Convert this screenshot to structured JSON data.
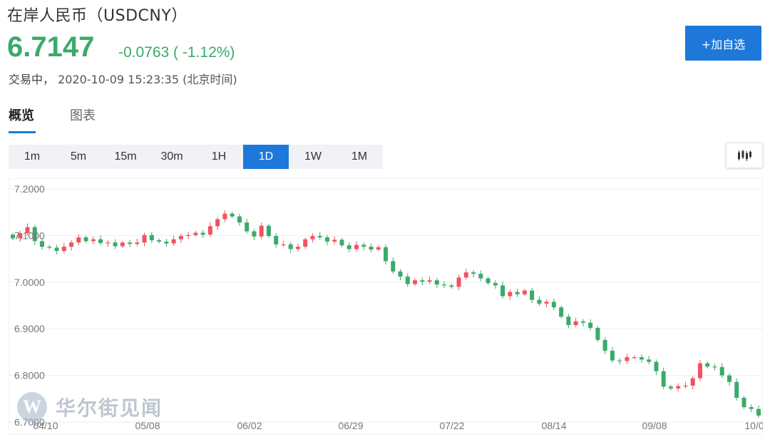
{
  "header": {
    "title": "在岸人民币（USDCNY）",
    "price": "6.7147",
    "change": "-0.0763 ( -1.12%)",
    "status_label": "交易中，",
    "timestamp": "2020-10-09 15:23:35 (北京时间)",
    "add_button": "+加自选"
  },
  "tabs": [
    {
      "label": "概览",
      "active": true
    },
    {
      "label": "图表",
      "active": false
    }
  ],
  "intervals": [
    {
      "label": "1m",
      "active": false
    },
    {
      "label": "5m",
      "active": false
    },
    {
      "label": "15m",
      "active": false
    },
    {
      "label": "30m",
      "active": false
    },
    {
      "label": "1H",
      "active": false
    },
    {
      "label": "1D",
      "active": true
    },
    {
      "label": "1W",
      "active": false
    },
    {
      "label": "1M",
      "active": false
    }
  ],
  "chart_type_icon": "candlestick-icon",
  "colors": {
    "up": "#f0535f",
    "down": "#3aaa6b",
    "accent": "#1e78d9"
  },
  "watermark": {
    "text": "华尔街见闻",
    "logo_letter": "W"
  },
  "chart_data": {
    "type": "candlestick",
    "y_ticks": [
      "7.2000",
      "7.1000",
      "7.0000",
      "6.9000",
      "6.8000",
      "6.7000"
    ],
    "x_ticks": [
      "04/10",
      "05/08",
      "06/02",
      "06/29",
      "07/22",
      "08/14",
      "09/08",
      "10/0"
    ],
    "ylim": [
      6.7,
      7.2
    ],
    "grid": true,
    "closes": [
      7.094,
      7.105,
      7.118,
      7.088,
      7.076,
      7.074,
      7.067,
      7.076,
      7.085,
      7.096,
      7.088,
      7.092,
      7.084,
      7.085,
      7.077,
      7.085,
      7.082,
      7.085,
      7.101,
      7.09,
      7.087,
      7.083,
      7.092,
      7.099,
      7.101,
      7.106,
      7.102,
      7.12,
      7.135,
      7.147,
      7.141,
      7.128,
      7.109,
      7.098,
      7.121,
      7.099,
      7.081,
      7.081,
      7.071,
      7.076,
      7.092,
      7.099,
      7.096,
      7.087,
      7.091,
      7.079,
      7.071,
      7.08,
      7.076,
      7.07,
      7.075,
      7.045,
      7.023,
      7.012,
      6.996,
      7.004,
      7.001,
      7.004,
      6.995,
      6.993,
      6.99,
      7.01,
      7.021,
      7.018,
      7.008,
      6.998,
      6.993,
      6.97,
      6.979,
      6.974,
      6.982,
      6.962,
      6.954,
      6.958,
      6.946,
      6.926,
      6.908,
      6.916,
      6.913,
      6.902,
      6.876,
      6.853,
      6.832,
      6.831,
      6.839,
      6.839,
      6.834,
      6.829,
      6.809,
      6.776,
      6.772,
      6.777,
      6.778,
      6.794,
      6.826,
      6.819,
      6.818,
      6.8,
      6.786,
      6.752,
      6.732,
      6.728,
      6.714
    ]
  }
}
